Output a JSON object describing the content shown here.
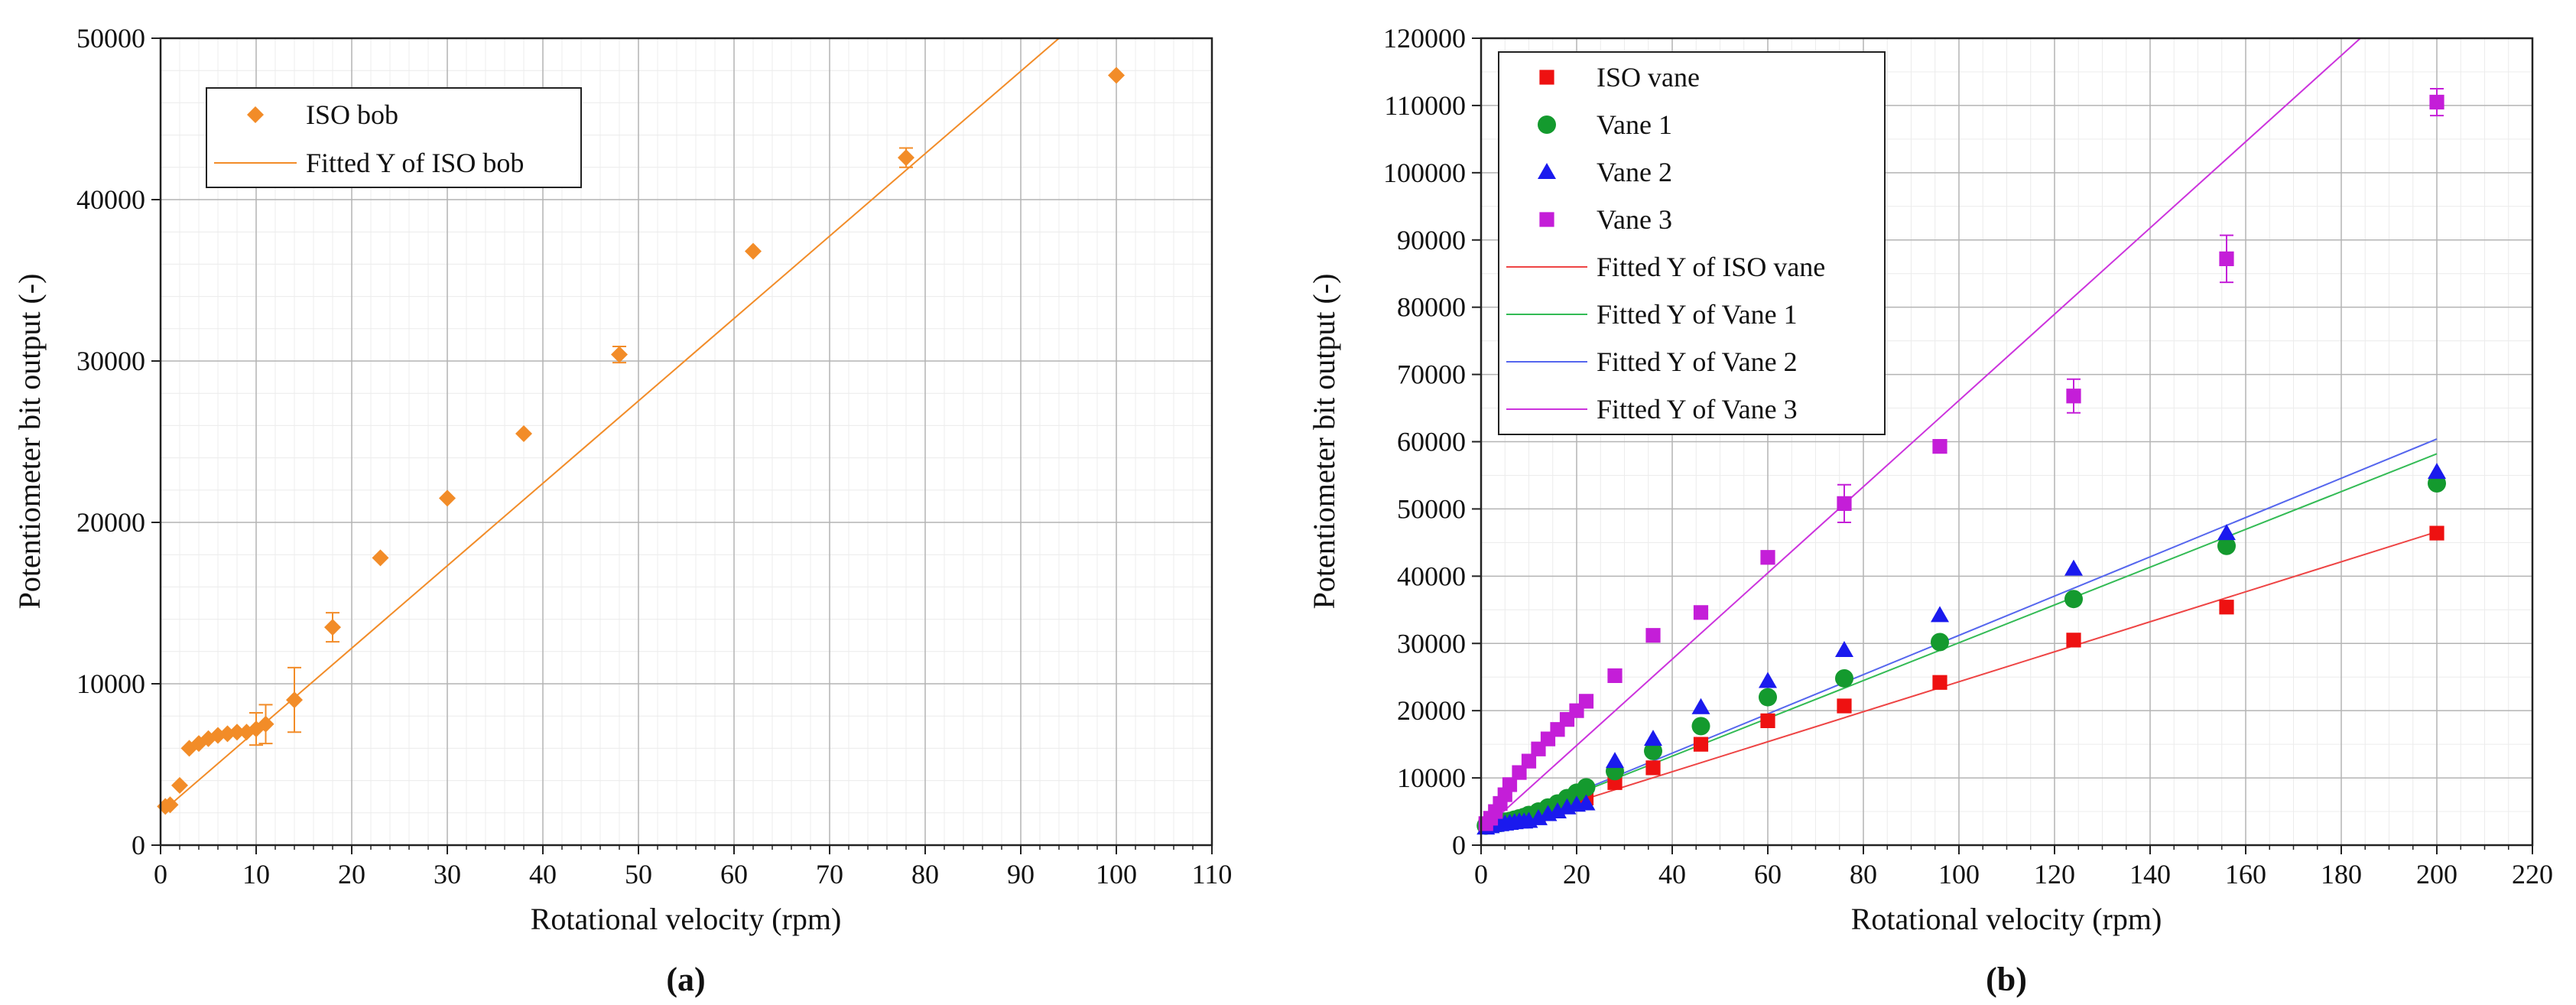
{
  "chart_data": [
    {
      "type": "scatter",
      "panel_label": "(a)",
      "xlabel": "Rotational velocity (rpm)",
      "ylabel": "Potentiometer bit output (-)",
      "xlim": [
        0,
        110
      ],
      "ylim": [
        0,
        50000
      ],
      "xticks": [
        0,
        10,
        20,
        30,
        40,
        50,
        60,
        70,
        80,
        90,
        100,
        110
      ],
      "yticks": [
        0,
        10000,
        20000,
        30000,
        40000,
        50000
      ],
      "grid": true,
      "legend_position": "top-left",
      "series": [
        {
          "name": "ISO bob",
          "color": "#f28c28",
          "marker": "diamond",
          "x": [
            0.5,
            1,
            2,
            3,
            4,
            5,
            6,
            7,
            8,
            9,
            10,
            11,
            14,
            18,
            23,
            30,
            38,
            48,
            62,
            78,
            100
          ],
          "y": [
            2400,
            2500,
            3700,
            6000,
            6300,
            6600,
            6800,
            6900,
            7000,
            7000,
            7200,
            7500,
            9000,
            13500,
            17800,
            21500,
            25500,
            30400,
            36800,
            42600,
            47700
          ],
          "err": [
            0,
            0,
            0,
            0,
            0,
            0,
            0,
            0,
            0,
            0,
            1000,
            1200,
            2000,
            900,
            0,
            0,
            0,
            500,
            0,
            600,
            0
          ]
        }
      ],
      "fits": [
        {
          "name": "Fitted Y of ISO bob",
          "color": "#f28c28",
          "x": [
            1,
            94
          ],
          "y": [
            2500,
            50000
          ]
        }
      ]
    },
    {
      "type": "scatter",
      "panel_label": "(b)",
      "xlabel": "Rotational velocity (rpm)",
      "ylabel": "Potentiometer bit output (-)",
      "xlim": [
        0,
        220
      ],
      "ylim": [
        0,
        120000
      ],
      "xticks": [
        0,
        20,
        40,
        60,
        80,
        100,
        120,
        140,
        160,
        180,
        200,
        220
      ],
      "yticks": [
        0,
        10000,
        20000,
        30000,
        40000,
        50000,
        60000,
        70000,
        80000,
        90000,
        100000,
        110000,
        120000
      ],
      "grid": true,
      "legend_position": "top-left",
      "series": [
        {
          "name": "ISO vane",
          "color": "#ee1111",
          "marker": "square",
          "x": [
            1,
            2,
            3,
            4,
            5,
            6,
            7,
            8,
            9,
            10,
            12,
            14,
            16,
            18,
            20,
            22,
            28,
            36,
            46,
            60,
            76,
            96,
            124,
            156,
            200
          ],
          "y": [
            2800,
            3000,
            3100,
            3200,
            3400,
            3500,
            3600,
            3700,
            3800,
            4000,
            4500,
            5000,
            5500,
            6000,
            6500,
            7000,
            9300,
            11500,
            15000,
            18500,
            20700,
            24200,
            30500,
            35400,
            46400
          ],
          "err": []
        },
        {
          "name": "Vane 1",
          "color": "#149a2e",
          "marker": "circle",
          "x": [
            1,
            2,
            3,
            4,
            5,
            6,
            7,
            8,
            9,
            10,
            12,
            14,
            16,
            18,
            20,
            22,
            28,
            36,
            46,
            60,
            76,
            96,
            124,
            156,
            200
          ],
          "y": [
            2900,
            3100,
            3200,
            3300,
            3500,
            3600,
            3800,
            4000,
            4200,
            4500,
            5000,
            5600,
            6200,
            7000,
            7800,
            8600,
            11000,
            14000,
            17700,
            22000,
            24800,
            30200,
            36600,
            44500,
            53800
          ],
          "err": []
        },
        {
          "name": "Vane 2",
          "color": "#1a1aee",
          "marker": "triangle",
          "x": [
            1,
            2,
            3,
            4,
            5,
            6,
            7,
            8,
            9,
            10,
            12,
            14,
            16,
            18,
            20,
            22,
            28,
            36,
            46,
            60,
            76,
            96,
            124,
            156,
            200
          ],
          "y": [
            2600,
            2800,
            3000,
            3100,
            3200,
            3300,
            3400,
            3500,
            3500,
            3600,
            4000,
            4600,
            5000,
            5600,
            6000,
            6200,
            12500,
            15800,
            20500,
            24400,
            29000,
            34200,
            41100,
            46400,
            55500
          ],
          "err": []
        },
        {
          "name": "Vane 3",
          "color": "#c41ed8",
          "marker": "square",
          "x": [
            1,
            2,
            3,
            4,
            5,
            6,
            8,
            10,
            12,
            14,
            16,
            18,
            20,
            22,
            28,
            36,
            46,
            60,
            76,
            96,
            124,
            156,
            200
          ],
          "y": [
            3200,
            4000,
            5000,
            6200,
            7500,
            9000,
            10800,
            12500,
            14300,
            15800,
            17200,
            18700,
            20000,
            21400,
            25200,
            31200,
            34600,
            42800,
            50800,
            59300,
            66800,
            87200,
            110500
          ],
          "err": [
            0,
            0,
            0,
            0,
            0,
            0,
            0,
            0,
            0,
            0,
            0,
            0,
            0,
            0,
            0,
            0,
            0,
            0,
            2800,
            0,
            2500,
            3500,
            2000
          ]
        }
      ],
      "fits": [
        {
          "name": "Fitted Y of ISO vane",
          "color": "#ee4444",
          "x": [
            0,
            200
          ],
          "y": [
            2000,
            46600
          ]
        },
        {
          "name": "Fitted Y of Vane 1",
          "color": "#33bb55",
          "x": [
            0,
            200
          ],
          "y": [
            2000,
            58200
          ]
        },
        {
          "name": "Fitted Y of Vane 2",
          "color": "#5566ee",
          "x": [
            0,
            200
          ],
          "y": [
            2000,
            60400
          ]
        },
        {
          "name": "Fitted Y of Vane 3",
          "color": "#cc33dd",
          "x": [
            0,
            184
          ],
          "y": [
            2000,
            120000
          ]
        }
      ]
    }
  ]
}
